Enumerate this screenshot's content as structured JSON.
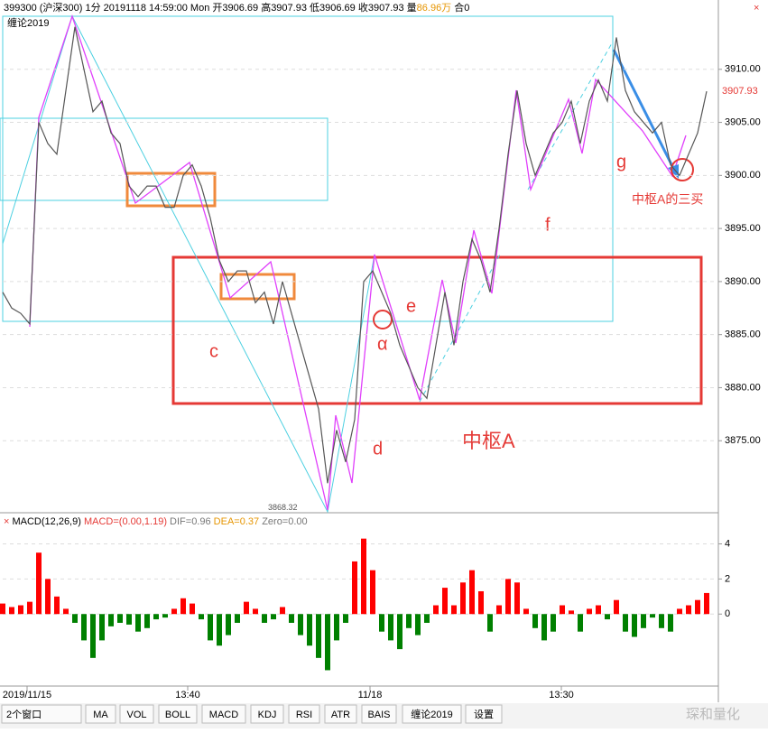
{
  "header": {
    "symbol": "399300 (沪深300) 1分 20191118 14:59:00 Mon",
    "ohlc": "开3906.69 高3907.93 低3906.69 收3907.93 量",
    "volume": "86.96万",
    "extra": "合0"
  },
  "chart_data": [
    {
      "type": "line",
      "series": [
        {
          "name": "缠论2019",
          "color": "#555555",
          "values": [
            3889,
            3887.5,
            3887,
            3886,
            3905,
            3903,
            3902,
            3908,
            3914,
            3910,
            3906,
            3907,
            3904,
            3903,
            3899,
            3898,
            3899,
            3899,
            3897,
            3897,
            3900,
            3901,
            3899,
            3896,
            3892,
            3890,
            3891,
            3891,
            3888,
            3889,
            3886,
            3890,
            3887,
            3884,
            3881,
            3878,
            3871,
            3876,
            3873,
            3877,
            3890,
            3891,
            3889,
            3887,
            3884,
            3882,
            3880,
            3879,
            3884,
            3889,
            3884,
            3890,
            3894,
            3892,
            3889,
            3895,
            3902,
            3908,
            3903,
            3900,
            3902,
            3904,
            3905,
            3907,
            3903,
            3907,
            3909,
            3907,
            3913,
            3908,
            3906,
            3905,
            3904,
            3905,
            3901,
            3900,
            3902,
            3904,
            3907.93
          ]
        }
      ],
      "ylim": [
        3868.3,
        3915.0
      ],
      "yticks": [
        {
          "value": 3875,
          "label": "3875.00"
        },
        {
          "value": 3880,
          "label": "3880.00"
        },
        {
          "value": 3885,
          "label": "3885.00"
        },
        {
          "value": 3890,
          "label": "3890.00"
        },
        {
          "value": 3895,
          "label": "3895.00"
        },
        {
          "value": 3900,
          "label": "3900.00"
        },
        {
          "value": 3905,
          "label": "3905.00"
        },
        {
          "value": 3910,
          "label": "3910.00"
        }
      ],
      "xlim": [
        0,
        79.2
      ],
      "xticks": [
        {
          "value": 2.7,
          "label": "2019/11/15"
        },
        {
          "value": 20.5,
          "label": "13:40"
        },
        {
          "value": 40.7,
          "label": "11/18"
        },
        {
          "value": 61.9,
          "label": "13:30"
        }
      ],
      "grid": true,
      "low_value": 3868.32,
      "last_value": 3907.93,
      "annotations": [
        "c",
        "d",
        "e",
        "f",
        "g",
        "α",
        "中枢A",
        "中枢A的三买"
      ]
    },
    {
      "type": "bar",
      "title": "MACD(12,26,9)",
      "stats": [
        "MACD=(0.00,1.19)",
        "DIF=0.96",
        "DEA=0.37",
        "Zero=0.00"
      ],
      "color": "#ff0000",
      "negative_color": "#008000",
      "values": [
        0.6,
        0.4,
        0.5,
        0.7,
        3.5,
        2,
        1,
        0.3,
        -0.5,
        -1.5,
        -2.5,
        -1.5,
        -0.7,
        -0.5,
        -0.6,
        -1,
        -0.8,
        -0.3,
        -0.2,
        0.3,
        0.9,
        0.6,
        -0.3,
        -1.5,
        -1.8,
        -1.2,
        -0.5,
        0.7,
        0.3,
        -0.5,
        -0.3,
        0.4,
        -0.5,
        -1.2,
        -1.8,
        -2.5,
        -3.2,
        -1.5,
        -0.5,
        3,
        4.3,
        2.5,
        -1,
        -1.5,
        -2,
        -0.8,
        -1.2,
        -0.5,
        0.5,
        1.5,
        0.5,
        1.8,
        2.5,
        1.3,
        -1,
        0.5,
        2,
        1.8,
        0.3,
        -0.8,
        -1.5,
        -1,
        0.5,
        0.2,
        -1,
        0.3,
        0.5,
        -0.3,
        0.8,
        -1,
        -1.3,
        -0.8,
        -0.2,
        -0.8,
        -1,
        0.3,
        0.5,
        0.8,
        1.2
      ],
      "ylim": [
        -4,
        4.9
      ],
      "yticks": [
        0,
        2,
        4
      ],
      "xlim": [
        0,
        79.2
      ]
    }
  ],
  "toolbar": [
    "2个窗口",
    "MA",
    "VOL",
    "BOLL",
    "MACD",
    "KDJ",
    "RSI",
    "ATR",
    "BAIS",
    "缠论2019",
    "设置"
  ],
  "watermark": "琛和量化"
}
